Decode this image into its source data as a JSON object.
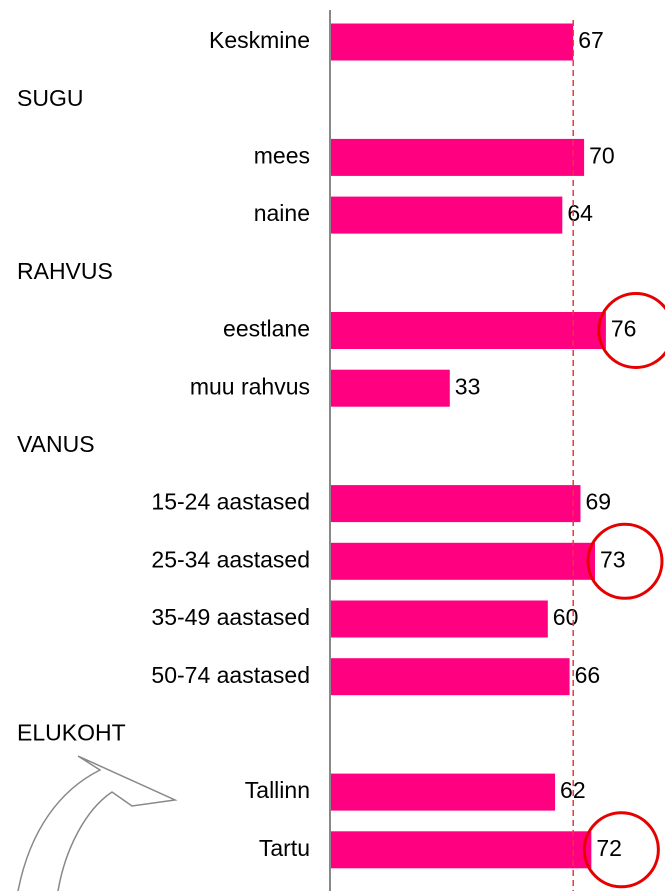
{
  "chart_data": {
    "type": "bar",
    "orientation": "horizontal",
    "categories": [
      "Keskmine",
      "SUGU",
      "mees",
      "naine",
      "RAHVUS",
      "eestlane",
      "muu rahvus",
      "VANUS",
      "15-24 aastased",
      "25-34 aastased",
      "35-49 aastased",
      "50-74 aastased",
      "ELUKOHT",
      "Tallinn",
      "Tartu"
    ],
    "values": [
      67,
      null,
      70,
      64,
      null,
      76,
      33,
      null,
      69,
      73,
      60,
      66,
      null,
      62,
      72
    ],
    "color": "#ff0080",
    "xlim": [
      0,
      100
    ],
    "reference_line": {
      "index": 0,
      "color": "#e8383d"
    },
    "circled": [
      5,
      9,
      14
    ],
    "circle_color": "#e60000"
  }
}
